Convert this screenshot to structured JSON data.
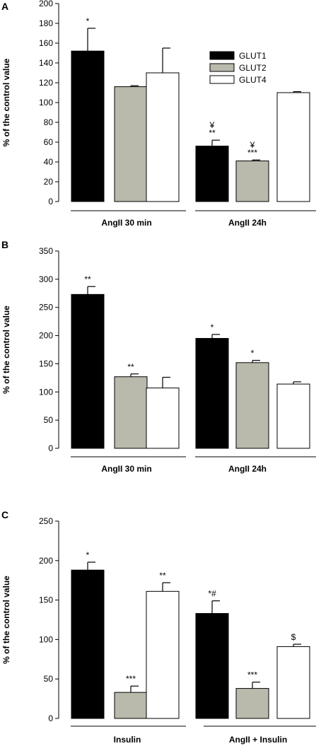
{
  "chart_data": [
    {
      "type": "bar",
      "panel": "A",
      "ylabel": "% of the control value",
      "ylim": [
        0,
        200
      ],
      "yticks": [
        "0",
        "20",
        "40",
        "60",
        "80",
        "100",
        "120",
        "140",
        "160",
        "180",
        "200"
      ],
      "group_labels": [
        "AngII 30 min",
        "AngII 24h"
      ],
      "legend": [
        "GLUT1",
        "GLUT2",
        "GLUT4"
      ],
      "colors": {
        "GLUT1": "#000000",
        "GLUT2": "#b9b9ac",
        "GLUT4": "#ffffff"
      },
      "bars": [
        {
          "series": "GLUT1",
          "group": "AngII 30 min",
          "value": 152,
          "error": 23,
          "annotation": "*"
        },
        {
          "series": "GLUT2",
          "group": "AngII 30 min",
          "value": 116,
          "error": 1,
          "annotation": ""
        },
        {
          "series": "GLUT4",
          "group": "AngII 30 min",
          "value": 130,
          "error": 25,
          "annotation": ""
        },
        {
          "series": "GLUT1",
          "group": "AngII 24h",
          "value": 56,
          "error": 6,
          "annotation": "¥\n**"
        },
        {
          "series": "GLUT2",
          "group": "AngII 24h",
          "value": 41,
          "error": 1,
          "annotation": "¥\n***"
        },
        {
          "series": "GLUT4",
          "group": "AngII 24h",
          "value": 110,
          "error": 1,
          "annotation": ""
        }
      ]
    },
    {
      "type": "bar",
      "panel": "B",
      "ylabel": "% of the control value",
      "ylim": [
        0,
        350
      ],
      "yticks": [
        "0",
        "50",
        "100",
        "150",
        "200",
        "250",
        "300",
        "350"
      ],
      "group_labels": [
        "AngII 30 min",
        "AngII 24h"
      ],
      "colors": {
        "GLUT1": "#000000",
        "GLUT2": "#b9b9ac",
        "GLUT4": "#ffffff"
      },
      "bars": [
        {
          "series": "GLUT1",
          "group": "AngII 30 min",
          "value": 273,
          "error": 14,
          "annotation": "**"
        },
        {
          "series": "GLUT2",
          "group": "AngII 30 min",
          "value": 127,
          "error": 5,
          "annotation": "**"
        },
        {
          "series": "GLUT4",
          "group": "AngII 30 min",
          "value": 107,
          "error": 19,
          "annotation": ""
        },
        {
          "series": "GLUT1",
          "group": "AngII 24h",
          "value": 195,
          "error": 7,
          "annotation": "*"
        },
        {
          "series": "GLUT2",
          "group": "AngII 24h",
          "value": 152,
          "error": 4,
          "annotation": "*"
        },
        {
          "series": "GLUT4",
          "group": "AngII 24h",
          "value": 114,
          "error": 4,
          "annotation": ""
        }
      ]
    },
    {
      "type": "bar",
      "panel": "C",
      "ylabel": "% of the control value",
      "ylim": [
        0,
        250
      ],
      "yticks": [
        "0",
        "50",
        "100",
        "150",
        "200",
        "250"
      ],
      "group_labels": [
        "Insulin",
        "AngII + Insulin"
      ],
      "colors": {
        "GLUT1": "#000000",
        "GLUT2": "#b9b9ac",
        "GLUT4": "#ffffff"
      },
      "bars": [
        {
          "series": "GLUT1",
          "group": "Insulin",
          "value": 188,
          "error": 10,
          "annotation": "*"
        },
        {
          "series": "GLUT2",
          "group": "Insulin",
          "value": 33,
          "error": 8,
          "annotation": "***"
        },
        {
          "series": "GLUT4",
          "group": "Insulin",
          "value": 161,
          "error": 11,
          "annotation": "**"
        },
        {
          "series": "GLUT1",
          "group": "AngII + Insulin",
          "value": 133,
          "error": 16,
          "annotation": "*#"
        },
        {
          "series": "GLUT2",
          "group": "AngII + Insulin",
          "value": 38,
          "error": 8,
          "annotation": "***"
        },
        {
          "series": "GLUT4",
          "group": "AngII + Insulin",
          "value": 91,
          "error": 3,
          "annotation": "$"
        }
      ]
    }
  ]
}
